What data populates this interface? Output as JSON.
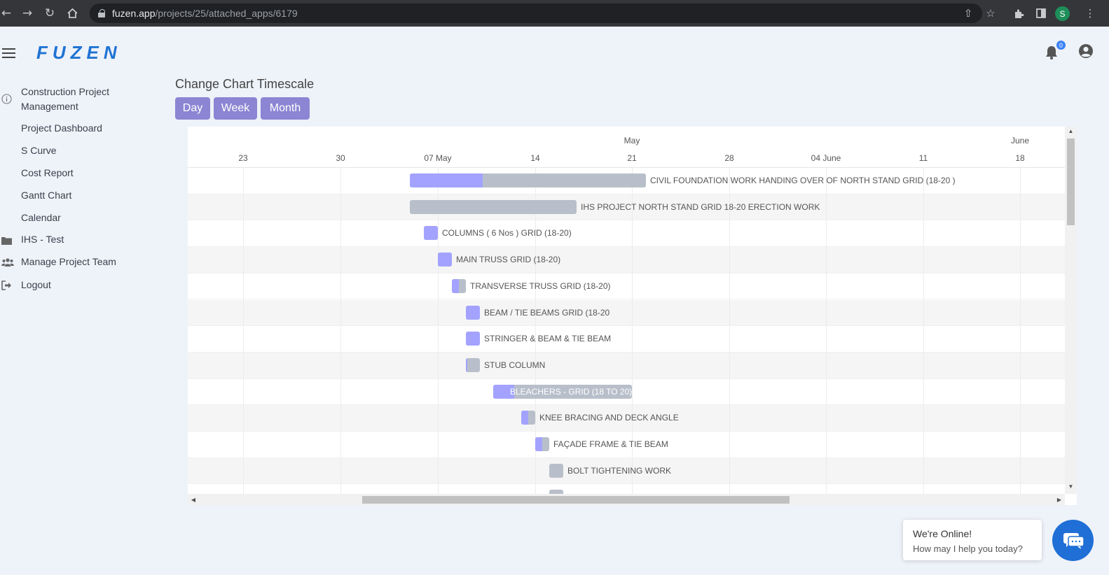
{
  "browser": {
    "url_domain": "fuzen.app",
    "url_path": "/projects/25/attached_apps/6179",
    "profile_initial": "S"
  },
  "app": {
    "logo": "FUZEN",
    "notifications_count": "0"
  },
  "sidebar": {
    "items": [
      {
        "label": "Construction Project Management",
        "icon": "info-icon"
      },
      {
        "label": "Project Dashboard",
        "icon": ""
      },
      {
        "label": "S Curve",
        "icon": ""
      },
      {
        "label": "Cost Report",
        "icon": ""
      },
      {
        "label": "Gantt Chart",
        "icon": ""
      },
      {
        "label": "Calendar",
        "icon": ""
      },
      {
        "label": "IHS - Test",
        "icon": "folder-icon"
      },
      {
        "label": "Manage Project Team",
        "icon": "team-icon"
      },
      {
        "label": "Logout",
        "icon": "logout-icon"
      }
    ]
  },
  "timescale": {
    "title": "Change Chart Timescale",
    "buttons": [
      "Day",
      "Week",
      "Month"
    ],
    "button_color": "#8c85d3"
  },
  "gantt": {
    "upper_labels": [
      "May",
      "June"
    ],
    "lower_labels": [
      "23",
      "30",
      "07 May",
      "14",
      "21",
      "28",
      "04 June",
      "11",
      "18"
    ],
    "progress_color": "#a3a3ff",
    "bar_color": "#b8bfca",
    "tasks": [
      {
        "name": "CIVIL FOUNDATION WORK HANDING OVER OF NORTH STAND GRID (18-20 )",
        "progress": 0.31
      },
      {
        "name": "IHS PROJECT NORTH STAND GRID 18-20 ERECTION WORK",
        "progress": 0
      },
      {
        "name": "COLUMNS ( 6 Nos ) GRID (18-20)",
        "progress": 1
      },
      {
        "name": "MAIN TRUSS GRID (18-20)",
        "progress": 1
      },
      {
        "name": "TRANSVERSE TRUSS GRID (18-20)",
        "progress": 0.5
      },
      {
        "name": "BEAM / TIE BEAMS GRID (18-20",
        "progress": 1
      },
      {
        "name": "STRINGER & BEAM & TIE BEAM",
        "progress": 1
      },
      {
        "name": "STUB COLUMN",
        "progress": 0.1
      },
      {
        "name": "BLEACHERS - GRID (18 TO 20)",
        "progress": 0.15
      },
      {
        "name": "KNEE BRACING AND DECK ANGLE",
        "progress": 0.5
      },
      {
        "name": "FAÇADE FRAME & TIE BEAM",
        "progress": 0.5
      },
      {
        "name": "BOLT TIGHTENING WORK",
        "progress": 0
      },
      {
        "name": "",
        "progress": 0
      }
    ]
  },
  "chat": {
    "title": "We're Online!",
    "subtitle": "How may I help you today?"
  }
}
